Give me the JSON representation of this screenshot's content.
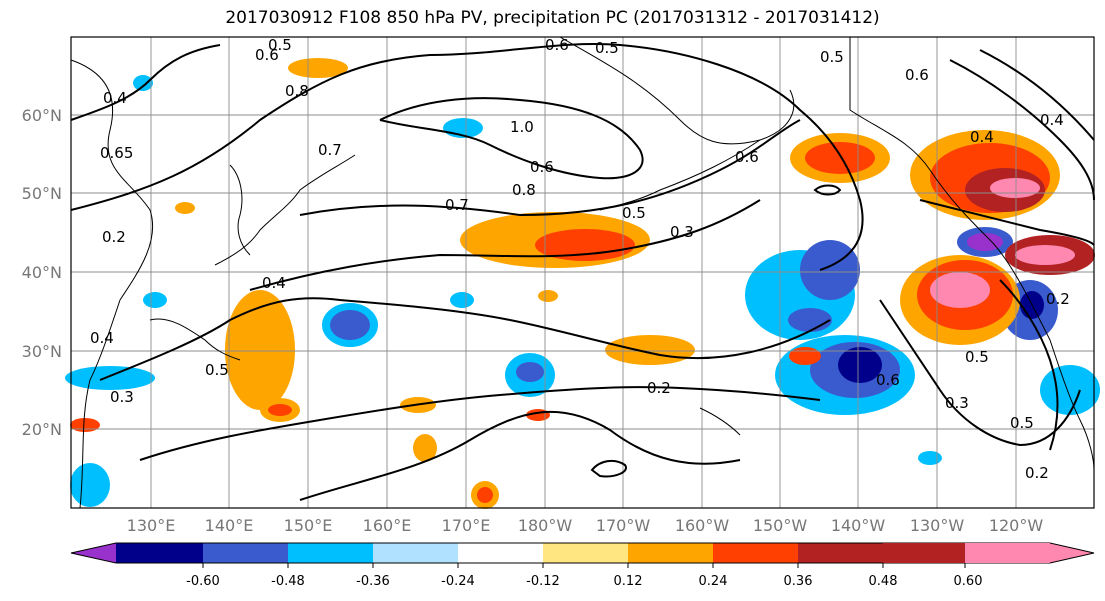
{
  "title": "2017030912 F108 850 hPa PV, precipitation PC (2017031312 - 2017031412)",
  "map": {
    "lat_labels": [
      "60°N",
      "50°N",
      "40°N",
      "30°N",
      "20°N"
    ],
    "lon_labels": [
      "130°E",
      "140°E",
      "150°E",
      "160°E",
      "170°E",
      "180°W",
      "170°W",
      "160°W",
      "150°W",
      "140°W",
      "130°W",
      "120°W"
    ],
    "contour_labels": [
      "0.5",
      "0.6",
      "0.5",
      "0.6",
      "0.4",
      "0.8",
      "0.7",
      "1.0",
      "0.6",
      "0.8",
      "0.7",
      "0.6",
      "0.5",
      "0.3",
      "0.4",
      "0.4",
      "0.2",
      "0.2",
      "0.4",
      "0.5",
      "0.6",
      "0.5",
      "0.3",
      "0.2",
      "0.5",
      "0.2",
      "0.4",
      "0.6",
      "0.65",
      "0.3",
      "0.5"
    ]
  },
  "colorbar": {
    "levels": [
      "-0.60",
      "-0.48",
      "-0.36",
      "-0.24",
      "-0.12",
      "0.12",
      "0.24",
      "0.36",
      "0.48",
      "0.60"
    ],
    "colors": [
      "#9932cc",
      "#00008b",
      "#3a5bcd",
      "#00bfff",
      "#b0e2ff",
      "#ffffff",
      "#ffe680",
      "#ffa500",
      "#ff4000",
      "#b22222",
      "#ff88b0"
    ]
  }
}
